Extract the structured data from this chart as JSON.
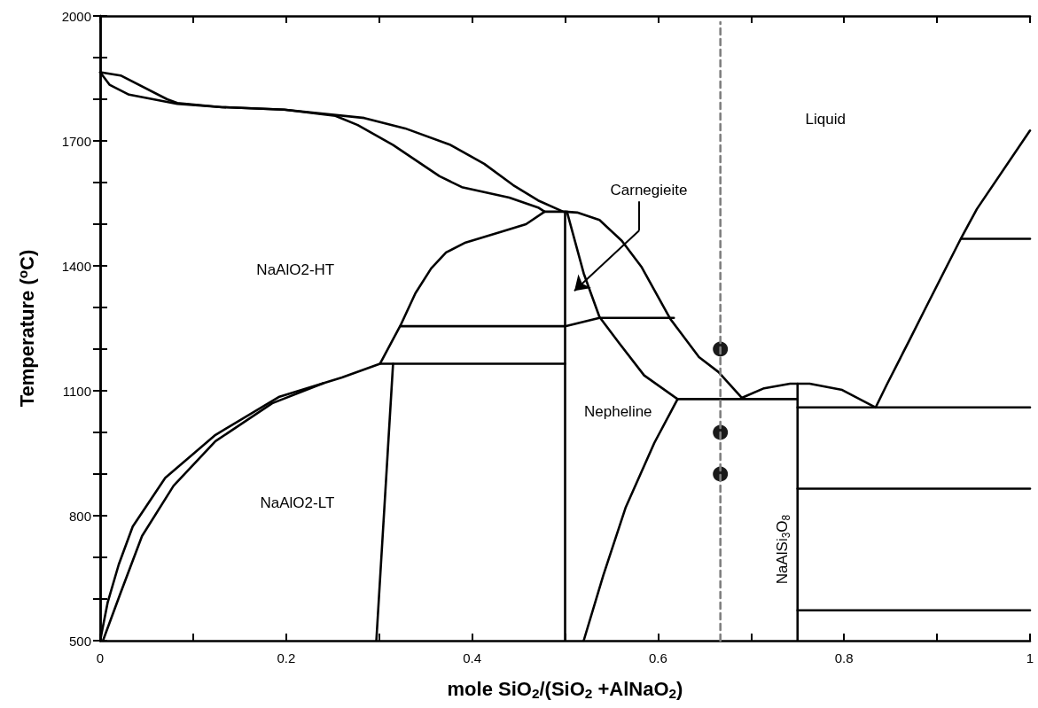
{
  "chart_data": {
    "type": "line",
    "xlabel": "mole SiO$_{2}$/(SiO$_{2}$ +AlNaO$_{2}$)",
    "ylabel": "Temperature ($^{o}$C)",
    "xlim": [
      0,
      1
    ],
    "ylim": [
      500,
      2000
    ],
    "xticks": [
      0,
      {
        "value": 0.1,
        "label": null
      },
      0.2,
      {
        "value": 0.3,
        "label": null
      },
      0.4,
      {
        "value": 0.5,
        "label": null
      },
      0.6,
      {
        "value": 0.7,
        "label": null
      },
      0.8,
      {
        "value": 0.9,
        "label": null
      },
      1
    ],
    "yticks": [
      500,
      {
        "value": 600,
        "label": null
      },
      {
        "value": 700,
        "label": null
      },
      800,
      {
        "value": 900,
        "label": null
      },
      {
        "value": 1000,
        "label": null
      },
      1100,
      {
        "value": 1200,
        "label": null
      },
      {
        "value": 1300,
        "label": null
      },
      1400,
      {
        "value": 1500,
        "label": null
      },
      {
        "value": 1600,
        "label": null
      },
      1700,
      {
        "value": 1800,
        "label": null
      },
      {
        "value": 1900,
        "label": null
      },
      2000
    ],
    "grid": false,
    "marker": "none",
    "line_style": "solid",
    "series": [
      {
        "color": "#000000",
        "x": [
          0,
          0.022,
          0.072,
          0.083,
          0.131,
          0.198,
          0.284,
          0.328,
          0.376,
          0.413,
          0.444,
          0.471,
          0.498
        ],
        "values": [
          1865,
          1857,
          1800,
          1791,
          1781,
          1775,
          1755,
          1730,
          1691,
          1645,
          1594,
          1557,
          1530
        ]
      },
      {
        "color": "#000000",
        "x": [
          0,
          0.01,
          0.031,
          0.083,
          0.131,
          0.198,
          0.253,
          0.277,
          0.315,
          0.365,
          0.389,
          0.44,
          0.471,
          0.478,
          0.458,
          0.43,
          0.393,
          0.372,
          0.356,
          0.339,
          0.323,
          0.301
        ],
        "values": [
          1865,
          1835,
          1811,
          1789,
          1781,
          1775,
          1760,
          1738,
          1690,
          1615,
          1589,
          1564,
          1540,
          1530,
          1500,
          1481,
          1456,
          1432,
          1394,
          1334,
          1257,
          1165
        ]
      },
      {
        "color": "#000000",
        "x": [
          0.478,
          0.5,
          0.513,
          0.537,
          0.561,
          0.582,
          0.613,
          0.644,
          0.665,
          0.69
        ],
        "values": [
          1530,
          1530,
          1528,
          1510,
          1460,
          1398,
          1273,
          1181,
          1145,
          1083
        ]
      },
      {
        "color": "#000000",
        "x": [
          0.5,
          0.5
        ],
        "values": [
          500,
          1530
        ]
      },
      {
        "color": "#000000",
        "x": [
          0.502,
          0.52,
          0.537,
          0.558,
          0.585,
          0.621
        ],
        "values": [
          1530,
          1382,
          1277,
          1215,
          1137,
          1080
        ]
      },
      {
        "color": "#000000",
        "x": [
          0.621,
          0.596,
          0.565,
          0.541,
          0.52
        ],
        "values": [
          1080,
          975,
          819,
          656,
          500
        ]
      },
      {
        "color": "#000000",
        "x": [
          0.621,
          0.75
        ],
        "values": [
          1080,
          1080
        ]
      },
      {
        "color": "#000000",
        "x": [
          0.69,
          0.714,
          0.742,
          0.763,
          0.798,
          0.834,
          0.846,
          0.87,
          0.888,
          0.926,
          0.943,
          1
        ],
        "values": [
          1083,
          1106,
          1117,
          1117,
          1102,
          1060,
          1115,
          1220,
          1300,
          1467,
          1537,
          1725
        ]
      },
      {
        "color": "#000000",
        "x": [
          0.926,
          1
        ],
        "values": [
          1465,
          1465
        ]
      },
      {
        "color": "#000000",
        "x": [
          0.75,
          0.75
        ],
        "values": [
          500,
          1117
        ]
      },
      {
        "color": "#000000",
        "x": [
          0.75,
          1
        ],
        "values": [
          1060,
          1060
        ]
      },
      {
        "color": "#000000",
        "x": [
          0.75,
          1
        ],
        "values": [
          865,
          865
        ]
      },
      {
        "color": "#000000",
        "x": [
          0.75,
          1
        ],
        "values": [
          573,
          573
        ]
      },
      {
        "color": "#000000",
        "x": [
          0.323,
          0.5,
          0.537,
          0.617
        ],
        "values": [
          1255,
          1255,
          1275,
          1275
        ]
      },
      {
        "color": "#000000",
        "x": [
          0.315,
          0.297
        ],
        "values": [
          1165,
          500
        ]
      },
      {
        "color": "#000000",
        "x": [
          0,
          0.008,
          0.02,
          0.035,
          0.07,
          0.124,
          0.192,
          0.26,
          0.301,
          0.5
        ],
        "values": [
          500,
          591,
          683,
          774,
          891,
          994,
          1085,
          1132,
          1165,
          1165
        ]
      },
      {
        "color": "#000000",
        "x": [
          0.003,
          0.022,
          0.045,
          0.079,
          0.124,
          0.185,
          0.24
        ],
        "values": [
          500,
          615,
          751,
          872,
          979,
          1070,
          1118
        ]
      },
      {
        "color": "#808080",
        "line_style": "dashed",
        "x": [
          0.667,
          0.667
        ],
        "values": [
          500,
          1985
        ]
      },
      {
        "type": "scatter",
        "marker": "circle",
        "color": "#1a1a1a",
        "x": [
          0.667,
          0.667,
          0.667
        ],
        "values": [
          1200,
          1000,
          900
        ]
      }
    ],
    "annotations": [
      "Liquid",
      "NaAlO2-HT",
      "Carnegieite",
      "Nepheline",
      "NaAlSi$_{3}$O$_{8}$",
      "NaAlO2-LT"
    ]
  }
}
